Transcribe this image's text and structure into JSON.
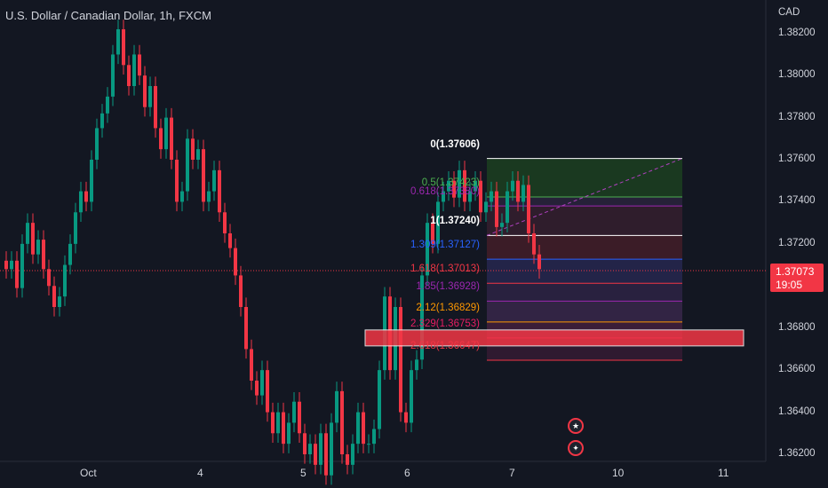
{
  "header": {
    "symbol_title": "U.S. Dollar / Canadian Dollar, 1h, FXCM"
  },
  "axis": {
    "currency": "CAD"
  },
  "current_price": {
    "value": "1.37073",
    "countdown": "19:05",
    "color": "#f23645"
  },
  "colors": {
    "up": "#089981",
    "down": "#f23645",
    "background": "#131722",
    "text": "#d1d4dc"
  },
  "events": [
    {
      "icon": "us-flag-icon"
    },
    {
      "icon": "ca-flag-icon"
    }
  ],
  "chart_data": {
    "type": "candlestick",
    "title": "U.S. Dollar / Canadian Dollar, 1h, FXCM",
    "ylabel": "CAD",
    "ylim": [
      1.361,
      1.3835
    ],
    "y_ticks": [
      "1.38200",
      "1.38000",
      "1.37800",
      "1.37600",
      "1.37400",
      "1.37200",
      "1.37000",
      "1.36800",
      "1.36600",
      "1.36400",
      "1.36200"
    ],
    "x_ticks": [
      "Oct",
      "4",
      "5",
      "6",
      "7",
      "10",
      "11"
    ],
    "grid": false,
    "close_series": [
      1.3708,
      1.3712,
      1.3699,
      1.372,
      1.373,
      1.3715,
      1.3722,
      1.3708,
      1.37,
      1.369,
      1.3695,
      1.371,
      1.372,
      1.3735,
      1.3745,
      1.374,
      1.376,
      1.3775,
      1.3782,
      1.379,
      1.381,
      1.3822,
      1.3805,
      1.3795,
      1.381,
      1.38,
      1.3785,
      1.3795,
      1.3775,
      1.3765,
      1.378,
      1.376,
      1.374,
      1.3745,
      1.377,
      1.376,
      1.3765,
      1.374,
      1.3745,
      1.3755,
      1.3735,
      1.3725,
      1.3718,
      1.3705,
      1.369,
      1.367,
      1.3655,
      1.3648,
      1.366,
      1.364,
      1.363,
      1.364,
      1.3625,
      1.3635,
      1.3645,
      1.363,
      1.362,
      1.3625,
      1.3615,
      1.363,
      1.361,
      1.3635,
      1.365,
      1.362,
      1.3615,
      1.3625,
      1.364,
      1.3625,
      1.3625,
      1.3632,
      1.366,
      1.3695,
      1.366,
      1.369,
      1.364,
      1.3635,
      1.366,
      1.3665,
      1.3705,
      1.373,
      1.372,
      1.374,
      1.3745,
      1.375,
      1.3742,
      1.3755,
      1.374,
      1.3745,
      1.375,
      1.3735,
      1.374,
      1.3745,
      1.3728,
      1.373,
      1.3745,
      1.375,
      1.374,
      1.3748,
      1.3725,
      1.3715,
      1.3708
    ],
    "fibonacci": [
      {
        "level": "0",
        "price": "1.37606",
        "color": "#ffffff"
      },
      {
        "level": "0.5",
        "price": "1.37423",
        "color": "#4caf50"
      },
      {
        "level": "0.618",
        "price": "1.37380",
        "color": "#9c27b0"
      },
      {
        "level": "1",
        "price": "1.37240",
        "color": "#ffffff"
      },
      {
        "level": "1.309",
        "price": "1.37127",
        "color": "#2962ff"
      },
      {
        "level": "1.618",
        "price": "1.37013",
        "color": "#f23645"
      },
      {
        "level": "1.85",
        "price": "1.36928",
        "color": "#9c27b0"
      },
      {
        "level": "2.12",
        "price": "1.36829",
        "color": "#ff9800"
      },
      {
        "level": "2.329",
        "price": "1.36753",
        "color": "#e91e63"
      },
      {
        "level": "2.618",
        "price": "1.36647",
        "color": "#f23645"
      }
    ],
    "highlight_level": "2.329"
  }
}
